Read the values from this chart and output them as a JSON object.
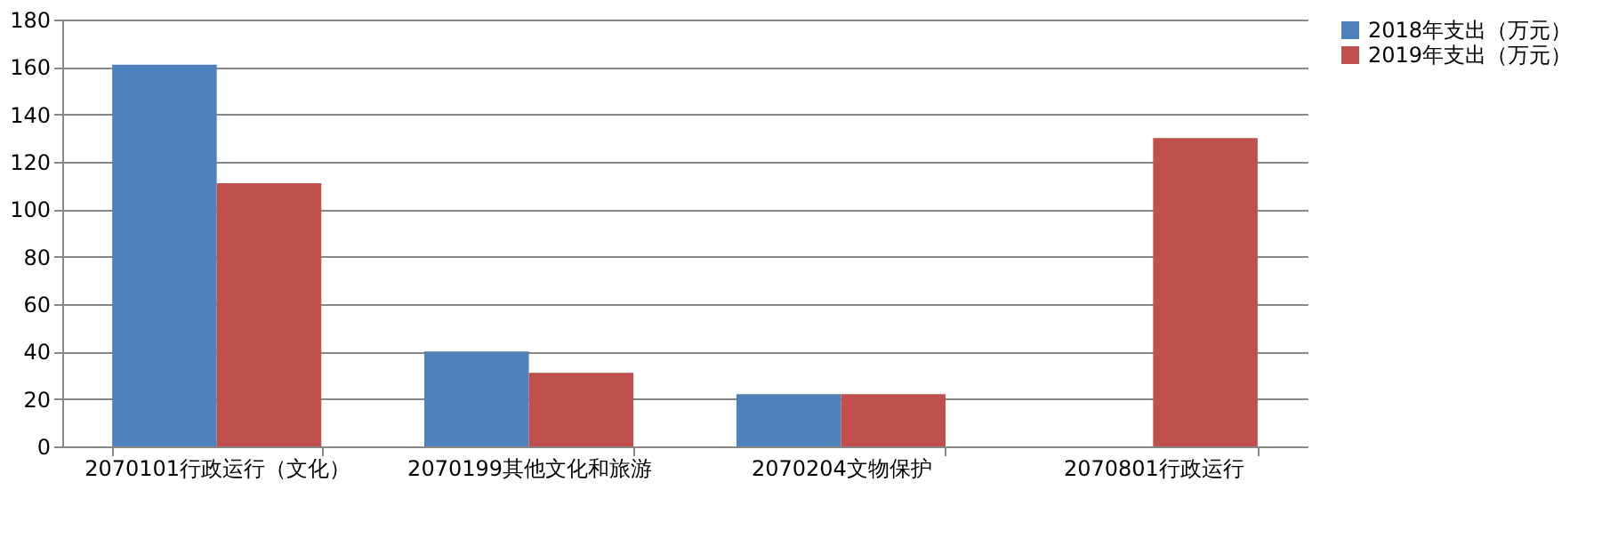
{
  "chart_data": {
    "type": "bar",
    "categories": [
      "2070101行政运行（文化）",
      "2070199其他文化和旅游",
      "2070204文物保护",
      "2070801行政运行"
    ],
    "series": [
      {
        "name": "2018年支出（万元）",
        "color": "#4f81bd",
        "values": [
          161,
          40,
          22,
          null
        ]
      },
      {
        "name": "2019年支出（万元）",
        "color": "#c0504d",
        "values": [
          111,
          31,
          22,
          130
        ]
      }
    ],
    "ylim": [
      0,
      180
    ],
    "yticks": [
      0,
      20,
      40,
      60,
      80,
      100,
      120,
      140,
      160,
      180
    ],
    "grid": "y",
    "legend": "right"
  }
}
